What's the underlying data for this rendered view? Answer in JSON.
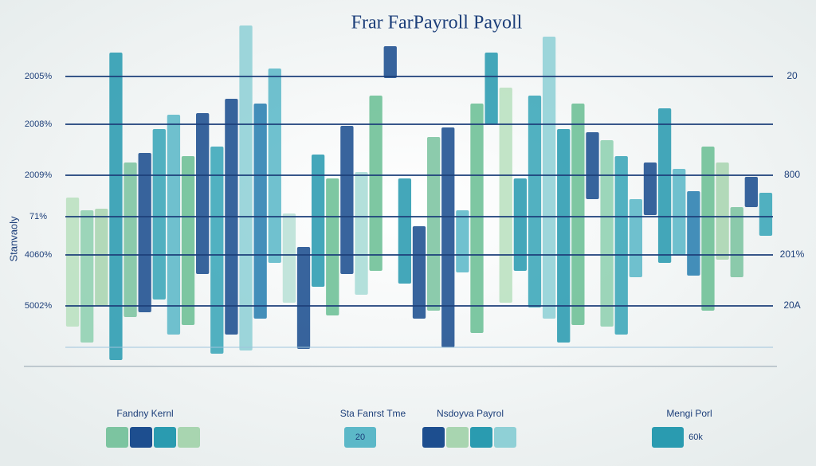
{
  "chart_data": {
    "type": "floating_bar",
    "title": "Frar FarPayroll Payoll",
    "y_label": "Stanvaoly",
    "ylim": [
      0,
      110
    ],
    "hlines": [
      {
        "value": 90,
        "left_label": "2005%",
        "right_label": "20"
      },
      {
        "value": 75,
        "left_label": "2008%"
      },
      {
        "value": 59,
        "left_label": "2009%",
        "right_label": "800"
      },
      {
        "value": 46,
        "left_label": "71%"
      },
      {
        "value": 34,
        "left_label": "4060%",
        "right_label": "201%"
      },
      {
        "value": 18,
        "left_label": "5002%",
        "right_label": "20A"
      },
      {
        "value": 5
      }
    ],
    "lows": [
      11.5,
      6.5,
      18,
      1,
      14.5,
      16,
      20,
      9,
      12,
      28,
      3,
      9,
      4,
      14,
      31.5,
      19,
      4.5,
      24,
      15,
      28,
      21.5,
      29,
      89.5,
      25,
      14,
      16.5,
      5,
      28.5,
      9.5,
      75,
      19,
      29,
      17.5,
      14,
      6.5,
      12,
      51.5,
      11.5,
      9,
      27,
      46.5,
      31.5,
      34,
      27.5,
      16.5,
      32.5,
      27,
      49,
      40
    ],
    "highs": [
      52,
      48,
      48.5,
      97.5,
      63,
      66,
      73.5,
      78,
      65,
      78.5,
      68,
      83,
      106,
      81.5,
      92.5,
      47,
      36.5,
      65.5,
      58,
      74.5,
      60,
      84,
      99.5,
      58,
      43,
      71,
      74,
      48,
      81.5,
      97.5,
      86.5,
      58,
      84,
      102.5,
      73.5,
      81.5,
      72.5,
      70,
      65,
      51.5,
      63,
      80,
      61,
      54,
      68,
      63,
      49,
      58.5,
      53.5
    ],
    "colors": [
      "#b9e0bf",
      "#8fd0b0",
      "#a8d5b0",
      "#2a9bb0",
      "#7cc4a0",
      "#1d4e8f",
      "#3aa6b8",
      "#5cb8c8",
      "#6cbf95",
      "#1d4e8f",
      "#3aa6b8",
      "#1d4e8f",
      "#8fd0d6",
      "#2a7fb0",
      "#5cb8c8",
      "#b9e0d6",
      "#1d4e8f",
      "#2a9bb0",
      "#6cbf95",
      "#1d4e8f",
      "#a8dcd6",
      "#6cbf95",
      "#1d4e8f",
      "#2a9bb0",
      "#1d4e8f",
      "#7cc4a0",
      "#1d4e8f",
      "#5cb8c8",
      "#6cbf95",
      "#2a9bb0",
      "#b9e0bf",
      "#2a9bb0",
      "#3aa6b8",
      "#8fd0d6",
      "#2a9bb0",
      "#6cbf95",
      "#1d4e8f",
      "#8fd0b0",
      "#3aa6b8",
      "#5cb8c8",
      "#1d4e8f",
      "#2a9bb0",
      "#5cb8c8",
      "#2a7fb0",
      "#6cbf95",
      "#a8d5b0",
      "#7cc4a0",
      "#1d4e8f",
      "#3aa6b8"
    ],
    "legend": [
      {
        "label": "Fandny Kernl",
        "colors": [
          "#7cc4a0",
          "#1d4e8f",
          "#2a9bb0",
          "#a8d5b0"
        ]
      },
      {
        "label": "Sta Fanrst Tme",
        "note": "20",
        "colors": [
          "#5cb8c8"
        ]
      },
      {
        "label": "Nsdoyva Payrol",
        "colors": [
          "#1d4e8f",
          "#a8d5b0",
          "#2a9bb0",
          "#8fd0d6"
        ]
      },
      {
        "label": "Mengi Porl",
        "note": "60k",
        "colors": [
          "#2a9bb0"
        ]
      }
    ]
  }
}
